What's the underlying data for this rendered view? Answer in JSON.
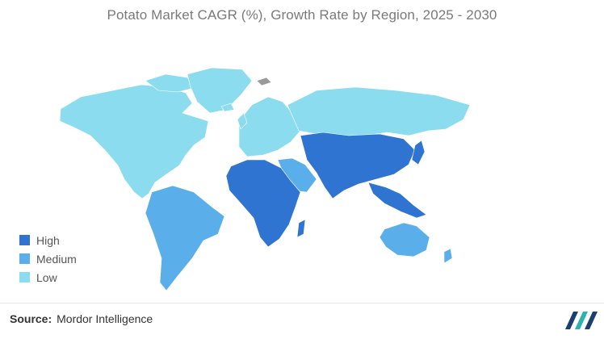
{
  "title": "Potato Market CAGR (%), Growth Rate by Region, 2025 - 2030",
  "colors": {
    "high": "#2f74d0",
    "medium": "#5aaeea",
    "low": "#8cdcef",
    "no_data": "#9a9a9a",
    "logo_dark": "#1d3f6e",
    "logo_teal": "#2bb3b1"
  },
  "legend": {
    "placement": "bottom-left",
    "items": [
      {
        "label": "High",
        "level": "high"
      },
      {
        "label": "Medium",
        "level": "medium"
      },
      {
        "label": "Low",
        "level": "low"
      }
    ]
  },
  "regions": {
    "north_america": "low",
    "south_america": "medium",
    "europe": "low",
    "russia": "low",
    "middle_east": "medium",
    "africa": "high",
    "asia": "high",
    "southeast_asia": "high",
    "australia": "medium",
    "new_zealand": "medium",
    "greenland": "low",
    "svalbard": "no_data"
  },
  "source": {
    "label": "Source:",
    "text": "Mordor Intelligence"
  }
}
